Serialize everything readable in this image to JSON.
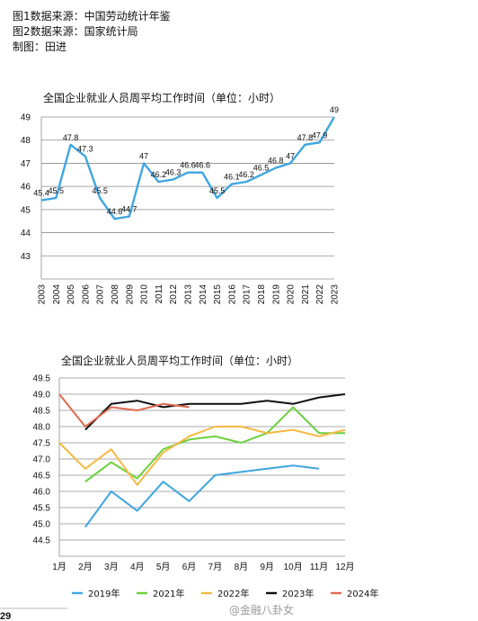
{
  "notes": {
    "line1": "图1数据来源：中国劳动统计年鉴",
    "line2": "图2数据来源：国家统计局",
    "line3": "制图：田进"
  },
  "chart_data": [
    {
      "type": "line",
      "title": "全国企业就业人员周平均工作时间（单位：小时）",
      "categories": [
        "2003",
        "2004",
        "2005",
        "2006",
        "2007",
        "2008",
        "2009",
        "2010",
        "2011",
        "2012",
        "2013",
        "2014",
        "2015",
        "2016",
        "2017",
        "2018",
        "2019",
        "2020",
        "2021",
        "2022",
        "2023"
      ],
      "values": [
        45.4,
        45.5,
        47.8,
        47.3,
        45.5,
        44.6,
        44.7,
        47,
        46.2,
        46.3,
        46.6,
        46.6,
        45.5,
        46.1,
        46.2,
        46.5,
        46.8,
        47,
        47.8,
        47.9,
        49
      ],
      "data_labels": [
        "45.4",
        "45.5",
        "47.8",
        "47.3",
        "45.5",
        "44.6",
        "44.7",
        "47",
        "46.2",
        "46.3",
        "46.6",
        "46.6",
        "45.5",
        "46.1",
        "46.2",
        "46.5",
        "46.8",
        "47",
        "47.8",
        "47.9",
        "49"
      ],
      "ylim": [
        42,
        49
      ],
      "yticks": [
        43,
        44,
        45,
        46,
        47,
        48,
        49
      ],
      "color": "#3fa6e0",
      "grid": true
    },
    {
      "type": "line",
      "title": "全国企业就业人员周平均工作时间（单位：小时）",
      "categories": [
        "1月",
        "2月",
        "3月",
        "4月",
        "5月",
        "6月",
        "7月",
        "8月",
        "9月",
        "10月",
        "11月",
        "12月"
      ],
      "ylim": [
        44,
        49.5
      ],
      "yticks": [
        "44.5",
        "45.0",
        "45.5",
        "46.0",
        "46.5",
        "47.0",
        "47.5",
        "48.0",
        "48.5",
        "49.0",
        "49.5"
      ],
      "grid": true,
      "legend_position": "bottom",
      "series": [
        {
          "name": "2019年",
          "color": "#3fa6e0",
          "values": [
            null,
            44.9,
            46.0,
            45.4,
            46.3,
            45.7,
            46.5,
            46.6,
            46.7,
            46.8,
            46.7,
            null
          ]
        },
        {
          "name": "2021年",
          "color": "#6ccf3c",
          "values": [
            null,
            46.3,
            46.9,
            46.4,
            47.3,
            47.6,
            47.7,
            47.5,
            47.8,
            48.6,
            47.8,
            47.8
          ]
        },
        {
          "name": "2022年",
          "color": "#f5b942",
          "values": [
            47.5,
            46.7,
            47.3,
            46.2,
            47.2,
            47.7,
            48.0,
            48.0,
            47.8,
            47.9,
            47.7,
            47.9
          ]
        },
        {
          "name": "2023年",
          "color": "#111111",
          "values": [
            null,
            47.9,
            48.7,
            48.8,
            48.6,
            48.7,
            48.7,
            48.7,
            48.8,
            48.7,
            48.9,
            49.0
          ]
        },
        {
          "name": "2024年",
          "color": "#e0694f",
          "values": [
            49.0,
            48.0,
            48.6,
            48.5,
            48.7,
            48.6,
            null,
            null,
            null,
            null,
            null,
            null
          ]
        }
      ]
    }
  ],
  "watermark": "@金融八卦女",
  "page_fragment": "29"
}
